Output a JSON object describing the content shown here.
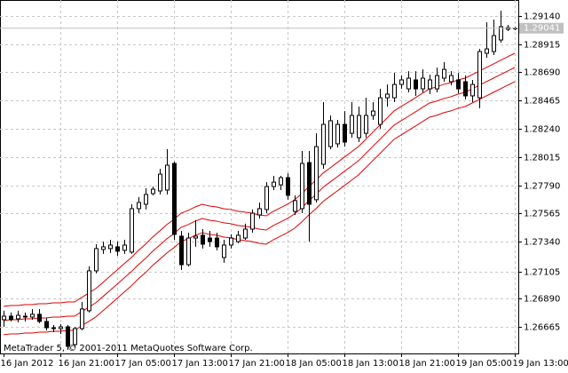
{
  "chart_data": {
    "type": "candlestick",
    "up_color": "#ffffff",
    "down_color": "#000000",
    "wick_color": "#000000",
    "grid": true,
    "categories": [
      "16 Jan 2012",
      null,
      null,
      null,
      null,
      null,
      null,
      null,
      "16 Jan 21:00",
      null,
      null,
      null,
      null,
      null,
      null,
      null,
      "17 Jan 05:00",
      null,
      null,
      null,
      null,
      null,
      null,
      null,
      "17 Jan 13:00",
      null,
      null,
      null,
      null,
      null,
      null,
      null,
      "17 Jan 21:00",
      null,
      null,
      null,
      null,
      null,
      null,
      null,
      "18 Jan 05:00",
      null,
      null,
      null,
      null,
      null,
      null,
      null,
      "18 Jan 13:00",
      null,
      null,
      null,
      null,
      null,
      null,
      null,
      "18 Jan 21:00",
      null,
      null,
      null,
      null,
      null,
      null,
      null,
      "19 Jan 05:00",
      null,
      null,
      null,
      null,
      null,
      null,
      null,
      "19 Jan 13:00"
    ],
    "open": [
      1.2672,
      1.26748,
      1.26727,
      1.26748,
      1.26741,
      1.26763,
      1.26706,
      1.26656,
      1.26649,
      1.26663,
      1.26522,
      1.26649,
      1.26791,
      1.27109,
      1.27279,
      1.27286,
      1.273,
      1.27272,
      1.27258,
      1.27604,
      1.27639,
      1.27724,
      1.27745,
      1.27752,
      1.27964,
      1.27385,
      1.27158,
      1.2737,
      1.27392,
      1.2737,
      1.2737,
      1.27215,
      1.27314,
      1.27342,
      1.2737,
      1.27441,
      1.27554,
      1.27597,
      1.2778,
      1.27794,
      1.27851,
      1.27582,
      1.27604,
      1.27971,
      1.27675,
      1.27957,
      1.28098,
      1.2812,
      1.28275,
      1.28204,
      1.28169,
      1.28204,
      1.28346,
      1.28275,
      1.28487,
      1.28487,
      1.28593,
      1.28558,
      1.28629,
      1.28558,
      1.28558,
      1.28558,
      1.28643,
      1.28615,
      1.28629,
      1.28615,
      1.28502,
      1.28487,
      1.28841,
      1.28855,
      1.28947,
      1.29032,
      1.29039
    ],
    "high": [
      1.26791,
      1.26777,
      1.26791,
      1.26777,
      1.26805,
      1.26805,
      1.26734,
      1.26678,
      1.26685,
      1.26678,
      1.26663,
      1.26861,
      1.27144,
      1.27321,
      1.27342,
      1.27356,
      1.27342,
      1.27356,
      1.27639,
      1.27696,
      1.27766,
      1.2778,
      1.27922,
      1.28077,
      1.27978,
      1.27427,
      1.27413,
      1.27512,
      1.27441,
      1.27427,
      1.27413,
      1.27356,
      1.27399,
      1.27427,
      1.27484,
      1.27597,
      1.27653,
      1.27815,
      1.27865,
      1.27865,
      1.27886,
      1.2771,
      1.28063,
      1.28063,
      1.28204,
      1.28452,
      1.28346,
      1.28311,
      1.28381,
      1.28452,
      1.28417,
      1.28487,
      1.28452,
      1.28558,
      1.28593,
      1.28685,
      1.28664,
      1.28699,
      1.28699,
      1.28713,
      1.28671,
      1.28727,
      1.2877,
      1.28699,
      1.28685,
      1.28664,
      1.28629,
      1.28876,
      1.29088,
      1.29109,
      1.2918,
      1.29067,
      1.29053
    ],
    "low": [
      1.26663,
      1.26706,
      1.26699,
      1.26706,
      1.2672,
      1.26692,
      1.26635,
      1.26621,
      1.26607,
      1.2648,
      1.26494,
      1.26635,
      1.26777,
      1.27088,
      1.27244,
      1.27251,
      1.27229,
      1.27244,
      1.27244,
      1.27568,
      1.27597,
      1.2771,
      1.27717,
      1.27717,
      1.27356,
      1.27116,
      1.27144,
      1.273,
      1.27286,
      1.273,
      1.27272,
      1.27173,
      1.27286,
      1.27328,
      1.27356,
      1.27413,
      1.27526,
      1.27568,
      1.27752,
      1.27752,
      1.27675,
      1.27554,
      1.27568,
      1.27342,
      1.27653,
      1.27922,
      1.28077,
      1.28091,
      1.28098,
      1.28169,
      1.28134,
      1.28169,
      1.28311,
      1.2824,
      1.28417,
      1.28452,
      1.28558,
      1.2853,
      1.28502,
      1.2853,
      1.28516,
      1.2853,
      1.28615,
      1.28586,
      1.28523,
      1.28473,
      1.28452,
      1.28403,
      1.28806,
      1.28827,
      1.28926,
      1.29018,
      1.29025
    ],
    "close": [
      1.26748,
      1.2672,
      1.26755,
      1.26741,
      1.26763,
      1.26706,
      1.26656,
      1.26649,
      1.26663,
      1.26508,
      1.26649,
      1.26805,
      1.27109,
      1.27286,
      1.273,
      1.27314,
      1.27265,
      1.27314,
      1.27604,
      1.27653,
      1.27717,
      1.27759,
      1.27879,
      1.2795,
      1.27399,
      1.27158,
      1.2737,
      1.27385,
      1.27321,
      1.27342,
      1.273,
      1.27314,
      1.2737,
      1.27392,
      1.27441,
      1.27568,
      1.27604,
      1.2778,
      1.27815,
      1.27851,
      1.2771,
      1.27668,
      1.27964,
      1.27639,
      1.28098,
      1.28275,
      1.28304,
      1.28275,
      1.28134,
      1.28346,
      1.28346,
      1.28346,
      1.28381,
      1.28487,
      1.28516,
      1.28593,
      1.28629,
      1.28643,
      1.28558,
      1.28643,
      1.28629,
      1.28664,
      1.28713,
      1.28664,
      1.28558,
      1.28502,
      1.28593,
      1.28855,
      1.28876,
      1.28982,
      1.29053,
      1.29046,
      1.29041
    ],
    "overlays": [
      {
        "color": "#e00000",
        "values": [
          1.26826,
          1.26833,
          1.26833,
          1.2684,
          1.2684,
          1.26847,
          1.26847,
          1.26854,
          1.26854,
          1.26861,
          1.26861,
          1.26897,
          1.26932,
          1.26968,
          1.27017,
          1.27066,
          1.27116,
          1.27166,
          1.27215,
          1.27272,
          1.27321,
          1.27378,
          1.27427,
          1.27477,
          1.27519,
          1.27568,
          1.2759,
          1.27618,
          1.27639,
          1.27625,
          1.27618,
          1.27604,
          1.27597,
          1.27583,
          1.27576,
          1.27568,
          1.27554,
          1.27547,
          1.27583,
          1.27611,
          1.27639,
          1.27675,
          1.27724,
          1.2778,
          1.2783,
          1.27887,
          1.27929,
          1.27971,
          1.28014,
          1.28056,
          1.28099,
          1.28155,
          1.28212,
          1.28268,
          1.28325,
          1.28382,
          1.28417,
          1.28452,
          1.28487,
          1.28523,
          1.28558,
          1.28573,
          1.28594,
          1.28608,
          1.28629,
          1.28643,
          1.28671,
          1.28699,
          1.28728,
          1.28756,
          1.28785,
          1.28813,
          1.28841
        ]
      },
      {
        "color": "#e00000",
        "values": [
          1.26713,
          1.2672,
          1.2672,
          1.26727,
          1.26727,
          1.26734,
          1.26734,
          1.26741,
          1.26741,
          1.26748,
          1.26748,
          1.26784,
          1.26819,
          1.26855,
          1.26904,
          1.26953,
          1.27003,
          1.27053,
          1.27102,
          1.27159,
          1.27208,
          1.27265,
          1.27314,
          1.27364,
          1.27406,
          1.27455,
          1.27477,
          1.27505,
          1.27526,
          1.27512,
          1.27505,
          1.27491,
          1.27484,
          1.2747,
          1.27463,
          1.27455,
          1.27441,
          1.27434,
          1.2747,
          1.27498,
          1.27526,
          1.27562,
          1.27611,
          1.27667,
          1.27717,
          1.27774,
          1.27816,
          1.27858,
          1.27901,
          1.27943,
          1.27986,
          1.28042,
          1.28099,
          1.28155,
          1.28212,
          1.28269,
          1.28304,
          1.28339,
          1.28374,
          1.2841,
          1.28445,
          1.2846,
          1.28481,
          1.28495,
          1.28516,
          1.2853,
          1.28558,
          1.28586,
          1.28615,
          1.28643,
          1.28672,
          1.287,
          1.28728
        ]
      },
      {
        "color": "#e00000",
        "values": [
          1.266,
          1.26607,
          1.26607,
          1.26614,
          1.26614,
          1.26621,
          1.26621,
          1.26628,
          1.26628,
          1.26635,
          1.26635,
          1.26671,
          1.26706,
          1.26742,
          1.26791,
          1.2684,
          1.2689,
          1.2694,
          1.26989,
          1.27046,
          1.27095,
          1.27152,
          1.27201,
          1.27251,
          1.27293,
          1.27342,
          1.27364,
          1.27392,
          1.27413,
          1.27399,
          1.27392,
          1.27378,
          1.27371,
          1.27357,
          1.2735,
          1.27342,
          1.27328,
          1.27321,
          1.27357,
          1.27385,
          1.27413,
          1.27449,
          1.27498,
          1.27554,
          1.27604,
          1.27661,
          1.27703,
          1.27745,
          1.27788,
          1.2783,
          1.27873,
          1.27929,
          1.27986,
          1.28042,
          1.28099,
          1.28156,
          1.28191,
          1.28226,
          1.28261,
          1.28297,
          1.28332,
          1.28347,
          1.28368,
          1.28382,
          1.28403,
          1.28417,
          1.28445,
          1.28473,
          1.28502,
          1.2853,
          1.28559,
          1.28587,
          1.28615
        ]
      }
    ],
    "ylim": [
      1.26451,
      1.2923
    ],
    "yticks": [
      {
        "value": 1.2914,
        "label": "1.29140"
      },
      1.28915,
      {
        "value": 1.2869,
        "label": "1.28690"
      },
      1.28465,
      {
        "value": 1.2824,
        "label": "1.28240"
      },
      1.28015,
      {
        "value": 1.2779,
        "label": "1.27790"
      },
      1.27565,
      {
        "value": 1.2734,
        "label": "1.27340"
      },
      1.27105,
      {
        "value": 1.2689,
        "label": "1.26890"
      },
      1.26665
    ],
    "last_price": 1.29041,
    "copyright": "MetaTrader 5, © 2001-2011 MetaQuotes Software Corp."
  }
}
